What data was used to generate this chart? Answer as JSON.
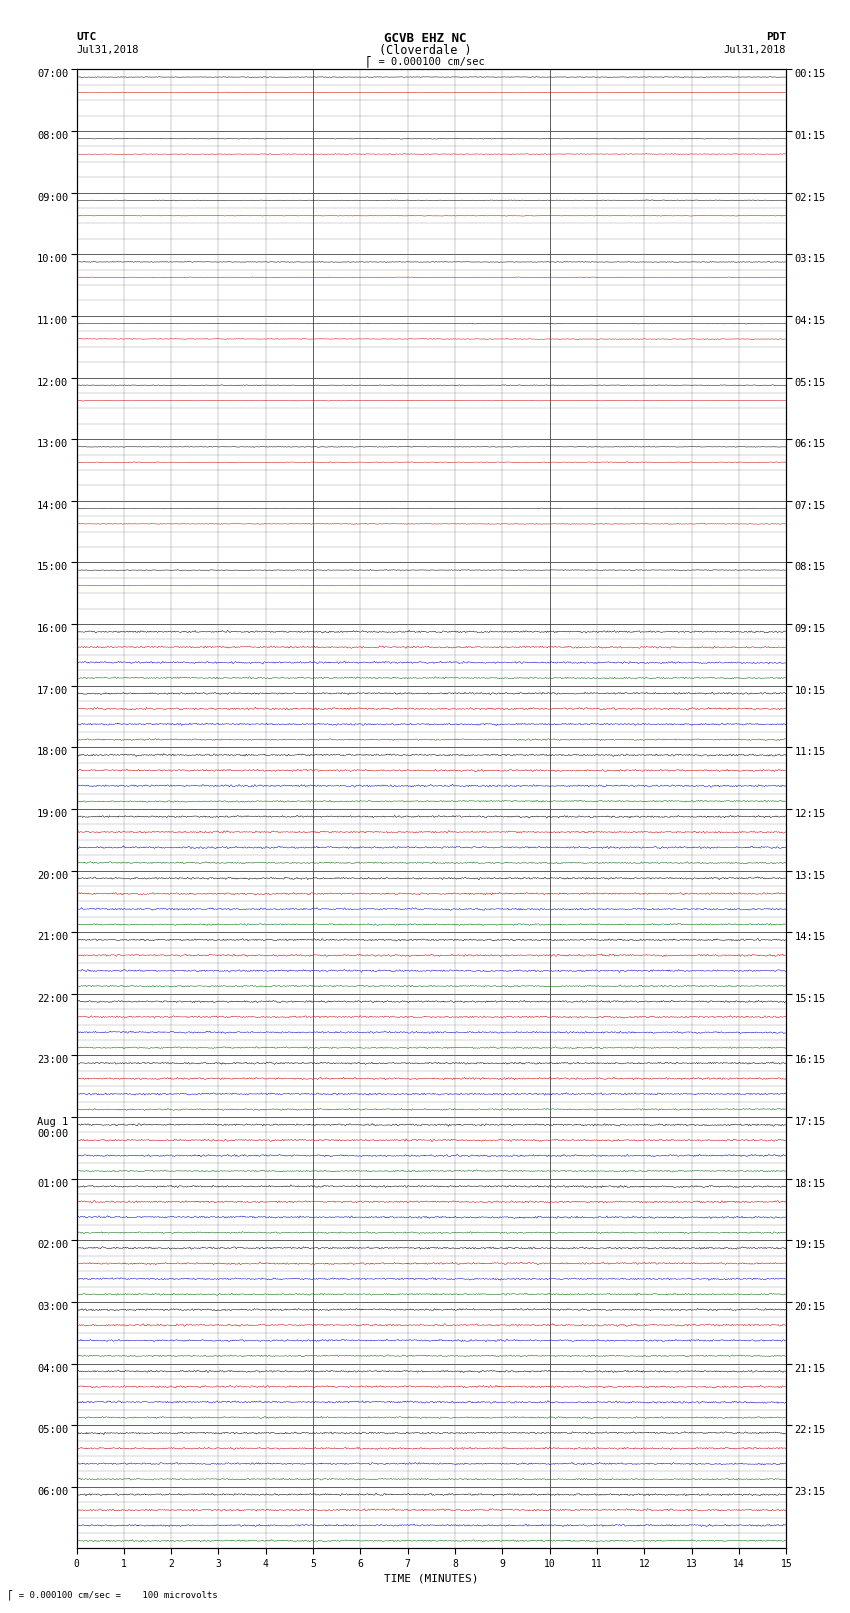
{
  "title_line1": "GCVB EHZ NC",
  "title_line2": "(Cloverdale )",
  "scale_label": "= 0.000100 cm/sec",
  "left_header1": "UTC",
  "left_header2": "Jul31,2018",
  "right_header1": "PDT",
  "right_header2": "Jul31,2018",
  "bottom_note": "= 0.000100 cm/sec =    100 microvolts",
  "xlabel": "TIME (MINUTES)",
  "bg_color": "#ffffff",
  "trace_colors": [
    "#000000",
    "#cc0000",
    "#0000cc",
    "#006600"
  ],
  "utc_row_labels": [
    "07:00",
    "08:00",
    "09:00",
    "10:00",
    "11:00",
    "12:00",
    "13:00",
    "14:00",
    "15:00",
    "16:00",
    "17:00",
    "18:00",
    "19:00",
    "20:00",
    "21:00",
    "22:00",
    "23:00",
    "Aug 1\n00:00",
    "01:00",
    "02:00",
    "03:00",
    "04:00",
    "05:00",
    "06:00"
  ],
  "pdt_row_labels": [
    "00:15",
    "01:15",
    "02:15",
    "03:15",
    "04:15",
    "05:15",
    "06:15",
    "07:15",
    "08:15",
    "09:15",
    "10:15",
    "11:15",
    "12:15",
    "13:15",
    "14:15",
    "15:15",
    "16:15",
    "17:15",
    "18:15",
    "19:15",
    "20:15",
    "21:15",
    "22:15",
    "23:15"
  ],
  "n_hours": 24,
  "rows_per_hour": 4,
  "n_minutes": 15,
  "pts_per_row": 1800,
  "early_hours": 9,
  "noise_amp_early": [
    0.035,
    0.035,
    0.0,
    0.0
  ],
  "noise_amp_later": [
    0.1,
    0.1,
    0.1,
    0.08
  ],
  "seed": 42
}
